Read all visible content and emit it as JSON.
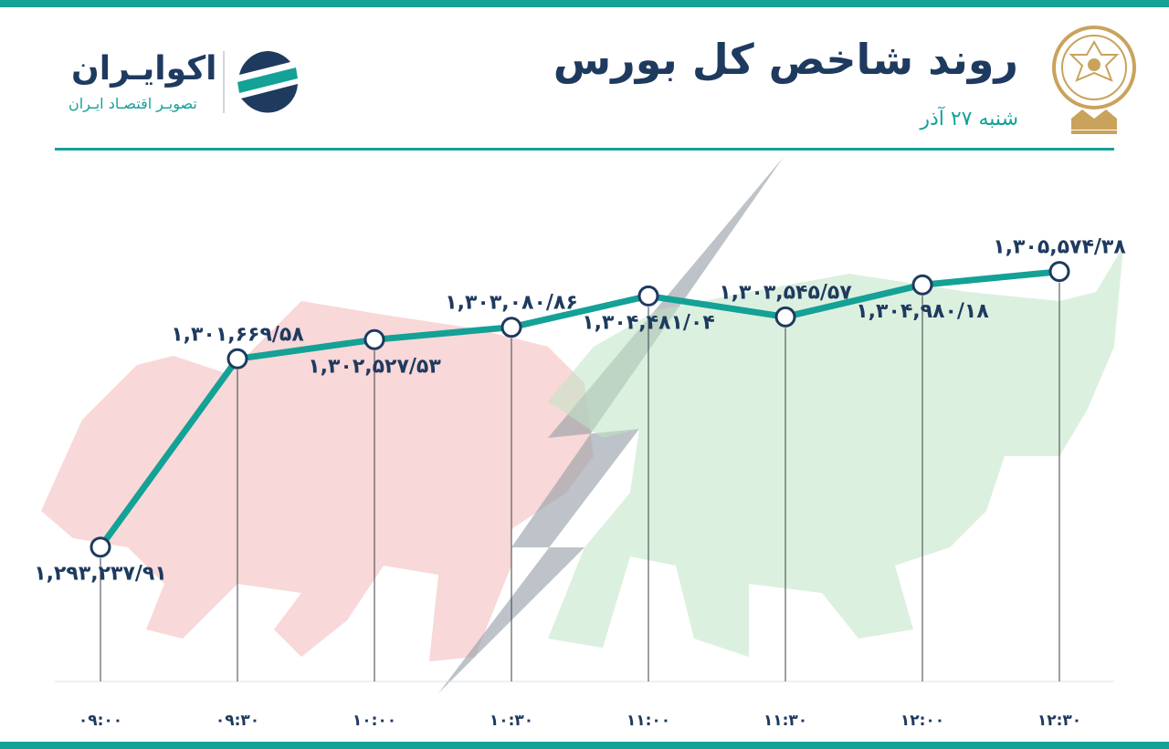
{
  "header": {
    "title": "روند شاخص کل بورس",
    "date": "شنبه ۲۷ آذر",
    "brand_name": "اکوایـران",
    "brand_tagline": "تصویـر اقتصـاد ایـران"
  },
  "icons": {
    "emblem": "exchange-emblem-icon",
    "brand_logo": "ecoiran-logo-icon"
  },
  "colors": {
    "accent": "#14a196",
    "title": "#1e3a5f",
    "bear": "#f2b8b8",
    "bull": "#bfe3c4",
    "bolt": "#9aa3ab"
  },
  "chart_data": {
    "type": "line",
    "title": "روند شاخص کل بورس",
    "xlabel": "",
    "ylabel": "",
    "categories": [
      "۰۹:۰۰",
      "۰۹:۳۰",
      "۱۰:۰۰",
      "۱۰:۳۰",
      "۱۱:۰۰",
      "۱۱:۳۰",
      "۱۲:۰۰",
      "۱۲:۳۰"
    ],
    "values": [
      1293237.91,
      1301669.58,
      1302527.53,
      1303080.86,
      1304481.04,
      1303545.57,
      1304980.18,
      1305574.38
    ],
    "value_labels": [
      "۱,۲۹۳,۲۳۷/۹۱",
      "۱,۳۰۱,۶۶۹/۵۸",
      "۱,۳۰۲,۵۲۷/۵۳",
      "۱,۳۰۳,۰۸۰/۸۶",
      "۱,۳۰۴,۴۸۱/۰۴",
      "۱,۳۰۳,۵۴۵/۵۷",
      "۱,۳۰۴,۹۸۰/۱۸",
      "۱,۳۰۵,۵۷۴/۳۸"
    ],
    "label_positions": [
      "below",
      "above",
      "below",
      "above",
      "below",
      "above",
      "below",
      "above"
    ],
    "grid": "vertical-drop-lines",
    "legend": "none"
  }
}
